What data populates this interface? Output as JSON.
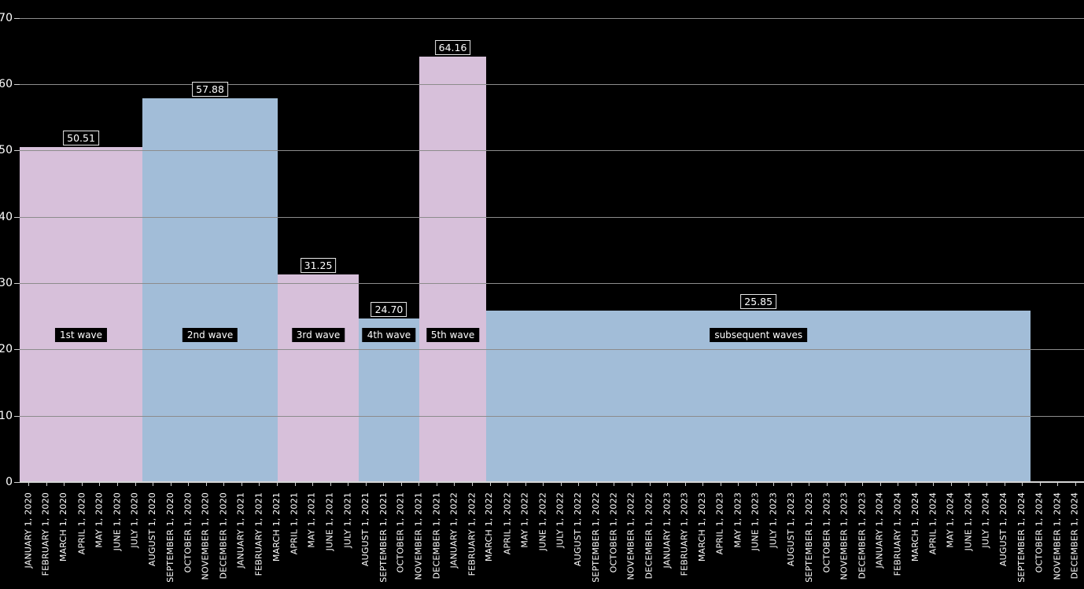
{
  "chart_data": {
    "type": "bar",
    "description_note": "Black-background step/bar chart of epidemic waves; bar widths span date ranges on a monthly axis (Jan 2020 - Dec 2024), x positions expressed in months since January 1, 2020.",
    "y_axis": {
      "ticks": [
        0,
        10,
        20,
        30,
        40,
        50,
        60,
        70
      ],
      "range": [
        0,
        70
      ],
      "grid": true
    },
    "x_axis": {
      "unit": "months since JANUARY 1, 2020",
      "range_months": 60,
      "tick_labels": [
        "JANUARY 1, 2020",
        "FEBRUARY 1, 2020",
        "MARCH 1, 2020",
        "APRIL 1, 2020",
        "MAY 1, 2020",
        "JUNE 1, 2020",
        "JULY 1, 2020",
        "AUGUST 1, 2020",
        "SEPTEMBER 1, 2020",
        "OCTOBER 1, 2020",
        "NOVEMBER 1, 2020",
        "DECEMBER 1, 2020",
        "JANUARY 1, 2021",
        "FEBRUARY 1, 2021",
        "MARCH 1, 2021",
        "APRIL 1, 2021",
        "MAY 1, 2021",
        "JUNE 1, 2021",
        "JULY 1, 2021",
        "AUGUST 1, 2021",
        "SEPTEMBER 1, 2021",
        "OCTOBER 1, 2021",
        "NOVEMBER 1, 2021",
        "DECEMBER 1, 2021",
        "JANUARY 1, 2022",
        "FEBRUARY 1, 2022",
        "MARCH 1, 2022",
        "APRIL 1, 2022",
        "MAY 1, 2022",
        "JUNE 1, 2022",
        "JULY 1, 2022",
        "AUGUST 1, 2022",
        "SEPTEMBER 1, 2022",
        "OCTOBER 1, 2022",
        "NOVEMBER 1, 2022",
        "DECEMBER 1, 2022",
        "JANUARY 1, 2023",
        "FEBRUARY 1, 2023",
        "MARCH 1, 2023",
        "APRIL 1, 2023",
        "MAY 1, 2023",
        "JUNE 1, 2023",
        "JULY 1, 2023",
        "AUGUST 1, 2023",
        "SEPTEMBER 1, 2023",
        "OCTOBER 1, 2023",
        "NOVEMBER 1, 2023",
        "DECEMBER 1, 2023",
        "JANUARY 1, 2024",
        "FEBRUARY 1, 2024",
        "MARCH 1, 2024",
        "APRIL 1, 2024",
        "MAY 1, 2024",
        "JUNE 1, 2024",
        "JULY 1, 2024",
        "AUGUST 1, 2024",
        "SEPTEMBER 1, 2024",
        "OCTOBER 1, 2024",
        "NOVEMBER 1, 2024",
        "DECEMBER 1, 2024"
      ]
    },
    "waves": [
      {
        "name": "1st wave",
        "value": 50.51,
        "value_label": "50.51",
        "color": "pink",
        "start_month": 0.0,
        "end_month": 6.92
      },
      {
        "name": "2nd wave",
        "value": 57.88,
        "value_label": "57.88",
        "color": "blue",
        "start_month": 6.92,
        "end_month": 14.55
      },
      {
        "name": "3rd wave",
        "value": 31.25,
        "value_label": "31.25",
        "color": "pink",
        "start_month": 14.55,
        "end_month": 19.11
      },
      {
        "name": "4th wave",
        "value": 24.7,
        "value_label": "24.70",
        "color": "blue",
        "start_month": 19.11,
        "end_month": 22.53
      },
      {
        "name": "5th wave",
        "value": 64.16,
        "value_label": "64.16",
        "color": "pink",
        "start_month": 22.53,
        "end_month": 26.3
      },
      {
        "name": "subsequent waves",
        "value": 25.85,
        "value_label": "25.85",
        "color": "blue",
        "start_month": 26.3,
        "end_month": 57.0
      }
    ],
    "colors": {
      "pink": "#d7c0da",
      "blue": "#a2bdd8",
      "grid": "#8c8c8c",
      "axis": "#d6d6d6",
      "tick": "#cfcfcf",
      "background": "#000000",
      "text": "#ffffff",
      "label_box_background": "#000000",
      "value_box_border": "#e8e8e8"
    },
    "legend_position": "none",
    "title": ""
  }
}
